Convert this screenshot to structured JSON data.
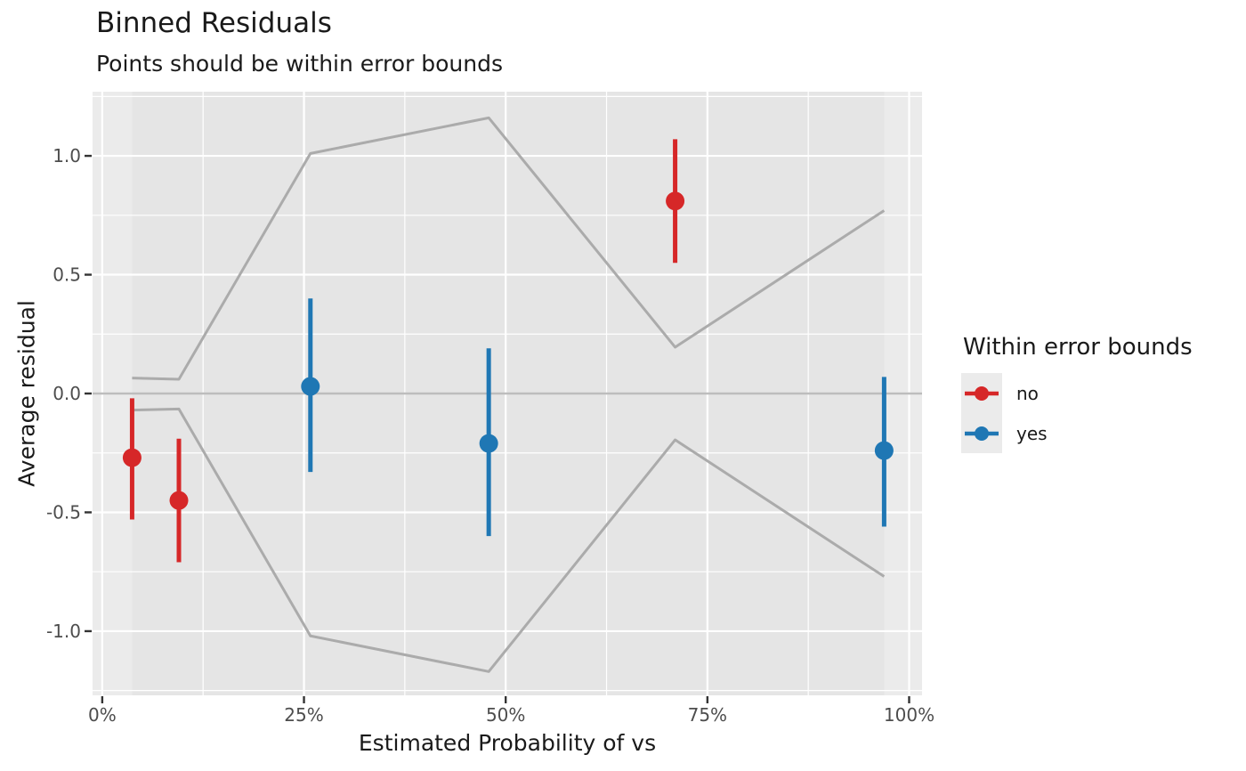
{
  "header": {
    "title": "Binned Residuals",
    "subtitle": "Points should be within error bounds"
  },
  "legend": {
    "title": "Within error bounds",
    "items": [
      {
        "label": "no",
        "color": "#d62728"
      },
      {
        "label": "yes",
        "color": "#1f77b4"
      }
    ]
  },
  "chart_data": {
    "type": "scatter",
    "subtype": "pointrange-with-error-bounds",
    "title": "Binned Residuals",
    "subtitle": "Points should be within error bounds",
    "xlabel": "Estimated Probability of vs",
    "ylabel": "Average residual",
    "x_unit": "percent",
    "xlim": [
      -1.2,
      101.6
    ],
    "ylim": [
      -1.27,
      1.27
    ],
    "x_ticks": {
      "values": [
        0,
        25,
        50,
        75,
        100
      ],
      "labels": [
        "0%",
        "25%",
        "50%",
        "75%",
        "100%"
      ]
    },
    "y_ticks": {
      "values": [
        -1.0,
        -0.5,
        0.0,
        0.5,
        1.0
      ],
      "labels": [
        "-1.0",
        "-0.5",
        "0.0",
        "0.5",
        "1.0"
      ]
    },
    "x_minor": [
      12.5,
      37.5,
      62.5,
      87.5
    ],
    "y_minor": [
      -1.25,
      -0.75,
      -0.25,
      0.25,
      0.75,
      1.25
    ],
    "grid": true,
    "legend_position": "right",
    "zero_line_y": 0,
    "points": [
      {
        "x": 3.7,
        "y": -0.27,
        "ymin": -0.53,
        "ymax": -0.02,
        "within_error_bounds": "no"
      },
      {
        "x": 9.5,
        "y": -0.45,
        "ymin": -0.71,
        "ymax": -0.19,
        "within_error_bounds": "no"
      },
      {
        "x": 25.8,
        "y": 0.03,
        "ymin": -0.33,
        "ymax": 0.4,
        "within_error_bounds": "yes"
      },
      {
        "x": 47.9,
        "y": -0.21,
        "ymin": -0.6,
        "ymax": 0.19,
        "within_error_bounds": "yes"
      },
      {
        "x": 71.0,
        "y": 0.81,
        "ymin": 0.55,
        "ymax": 1.07,
        "within_error_bounds": "no"
      },
      {
        "x": 96.9,
        "y": -0.24,
        "ymin": -0.56,
        "ymax": 0.07,
        "within_error_bounds": "yes"
      }
    ],
    "error_bounds": {
      "x": [
        3.7,
        9.5,
        25.8,
        47.9,
        71.0,
        96.9
      ],
      "upper": [
        0.065,
        0.06,
        1.01,
        1.16,
        0.195,
        0.77
      ],
      "lower": [
        -0.07,
        -0.065,
        -1.02,
        -1.17,
        -0.195,
        -0.77
      ]
    },
    "colors": {
      "no": "#d62728",
      "yes": "#1f77b4",
      "panel": "#ebebeb",
      "band": "#e5e5e5",
      "grid_major": "#ffffff",
      "grid_minor": "#ffffff",
      "envelope_line": "#ababab",
      "zero_line": "#bdbdbd",
      "tick_mark": "#333333",
      "tick_label": "#4d4d4d"
    }
  }
}
